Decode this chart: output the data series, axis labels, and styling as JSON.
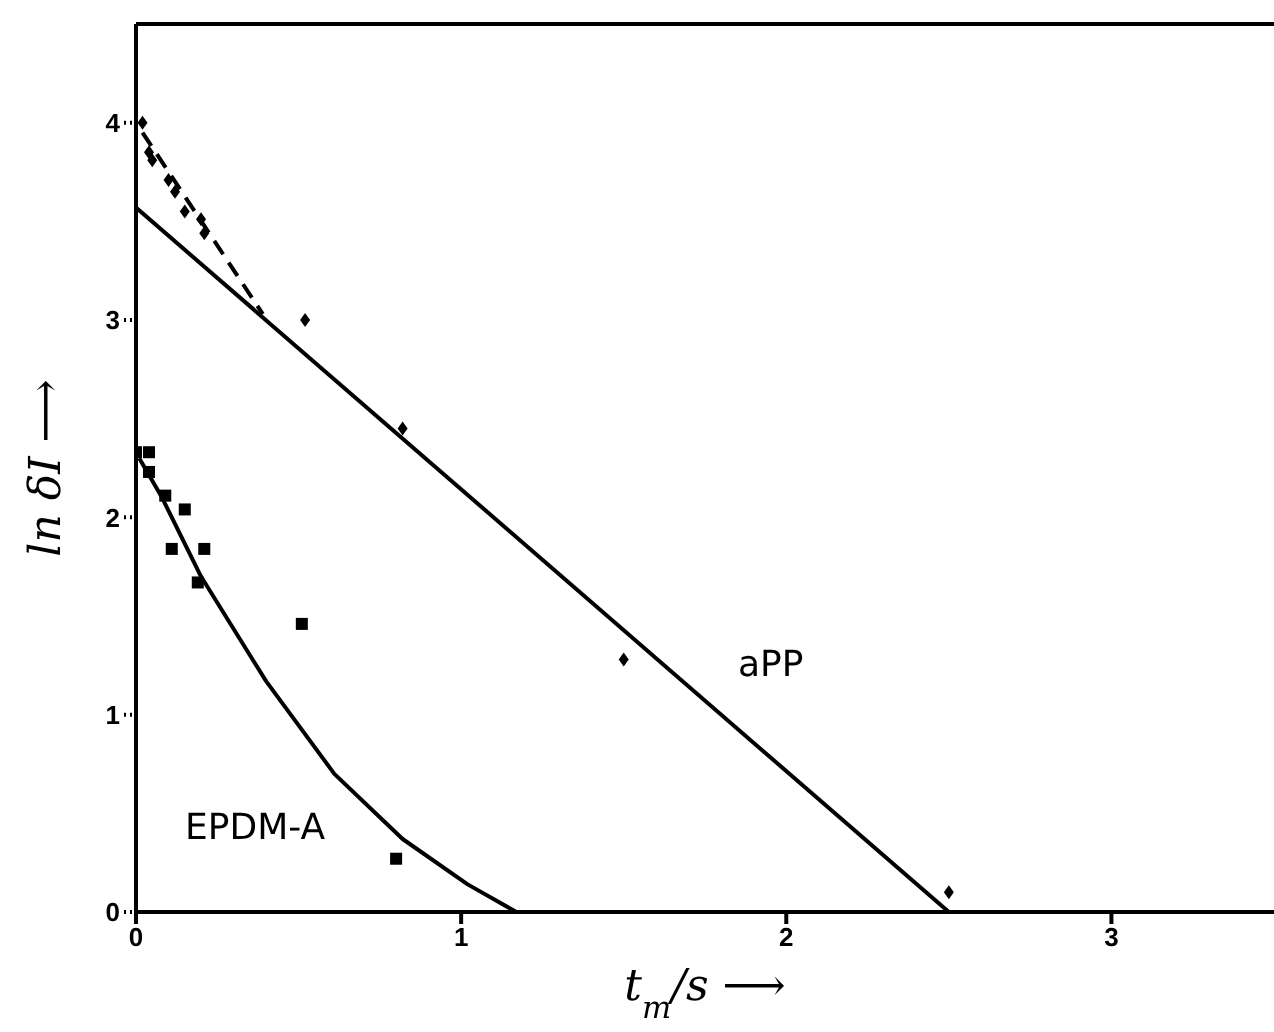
{
  "chart_data": {
    "type": "scatter",
    "xlabel": "t$_{m}$/s ⟶",
    "ylabel": "ln δI ⟶",
    "xlim": [
      0,
      3.5
    ],
    "ylim": [
      0,
      4.5
    ],
    "xticks": [
      0,
      1,
      2,
      3
    ],
    "yticks": [
      0,
      1,
      2,
      3,
      4
    ],
    "grid": false,
    "series": [
      {
        "type": "scatter",
        "color": "#000000",
        "marker": "diamond",
        "x": [
          0.02,
          0.04,
          0.05,
          0.1,
          0.12,
          0.15,
          0.2,
          0.21,
          0.52,
          0.82,
          1.5,
          2.5
        ],
        "values": [
          4.0,
          3.85,
          3.81,
          3.71,
          3.65,
          3.55,
          3.51,
          3.44,
          3.0,
          2.45,
          1.28,
          0.1
        ]
      },
      {
        "type": "line",
        "color": "#000000",
        "marker": "none",
        "line_style": "solid",
        "x": [
          0,
          2.5
        ],
        "values": [
          3.57,
          0
        ]
      },
      {
        "type": "line",
        "color": "#000000",
        "marker": "none",
        "line_style": "dashed",
        "x": [
          0.02,
          0.39
        ],
        "values": [
          3.95,
          3.03
        ]
      },
      {
        "type": "scatter",
        "color": "#000000",
        "marker": "square",
        "x": [
          0.0,
          0.04,
          0.04,
          0.09,
          0.15,
          0.11,
          0.21,
          0.19,
          0.51,
          0.8
        ],
        "values": [
          2.33,
          2.33,
          2.23,
          2.11,
          2.04,
          1.84,
          1.84,
          1.67,
          1.46,
          0.27
        ]
      },
      {
        "type": "line",
        "color": "#000000",
        "marker": "none",
        "line_style": "solid",
        "x": [
          0.01,
          0.08,
          0.2,
          0.4,
          0.61,
          0.82,
          1.02,
          1.17
        ],
        "values": [
          2.3,
          2.1,
          1.7,
          1.17,
          0.7,
          0.37,
          0.14,
          0
        ]
      }
    ],
    "annotations": [
      "aPP",
      "EPDM-A"
    ]
  }
}
